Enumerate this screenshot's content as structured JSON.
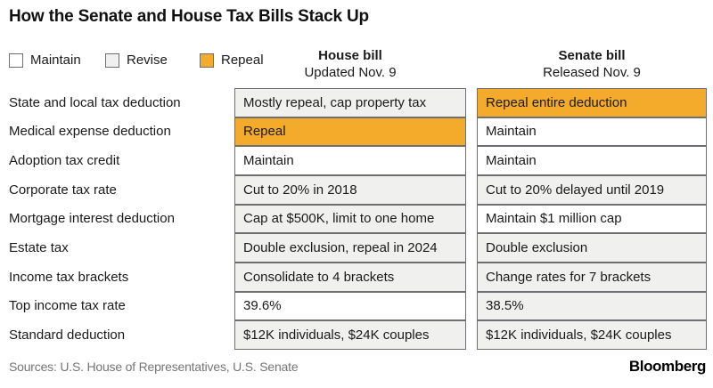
{
  "title": "How the Senate and House Tax Bills Stack Up",
  "legend": {
    "maintain": {
      "label": "Maintain"
    },
    "revise": {
      "label": "Revise"
    },
    "repeal": {
      "label": "Repeal"
    }
  },
  "columns": {
    "house": {
      "title": "House bill",
      "subtitle": "Updated Nov. 9"
    },
    "senate": {
      "title": "Senate bill",
      "subtitle": "Released Nov. 9"
    }
  },
  "colors": {
    "maintain": "#ffffff",
    "revise": "#f0f0ee",
    "repeal": "#f4ab2c",
    "border": "#6e6f72"
  },
  "footer": {
    "sources": "Sources: U.S. House of Representatives, U.S. Senate",
    "brand": "Bloomberg"
  },
  "chart_data": {
    "type": "table",
    "title": "How the Senate and House Tax Bills Stack Up",
    "legend": [
      "Maintain",
      "Revise",
      "Repeal"
    ],
    "columns": [
      "House bill (Updated Nov. 9)",
      "Senate bill (Released Nov. 9)"
    ],
    "rows": [
      {
        "category": "State and local tax deduction",
        "house": "Mostly repeal, cap property tax",
        "house_status": "revise",
        "senate": "Repeal entire deduction",
        "senate_status": "repeal"
      },
      {
        "category": "Medical expense deduction",
        "house": "Repeal",
        "house_status": "repeal",
        "senate": "Maintain",
        "senate_status": "maintain"
      },
      {
        "category": "Adoption tax credit",
        "house": "Maintain",
        "house_status": "maintain",
        "senate": "Maintain",
        "senate_status": "maintain"
      },
      {
        "category": "Corporate tax rate",
        "house": "Cut to 20% in 2018",
        "house_status": "revise",
        "senate": "Cut to 20% delayed until 2019",
        "senate_status": "revise"
      },
      {
        "category": "Mortgage interest deduction",
        "house": "Cap at $500K, limit to one home",
        "house_status": "revise",
        "senate": "Maintain $1 million cap",
        "senate_status": "maintain"
      },
      {
        "category": "Estate tax",
        "house": "Double exclusion, repeal in 2024",
        "house_status": "revise",
        "senate": "Double exclusion",
        "senate_status": "revise"
      },
      {
        "category": "Income tax brackets",
        "house": "Consolidate to 4 brackets",
        "house_status": "revise",
        "senate": "Change rates for 7 brackets",
        "senate_status": "revise"
      },
      {
        "category": "Top income tax rate",
        "house": "39.6%",
        "house_status": "maintain",
        "senate": "38.5%",
        "senate_status": "revise"
      },
      {
        "category": "Standard deduction",
        "house": "$12K individuals, $24K couples",
        "house_status": "revise",
        "senate": "$12K individuals, $24K couples",
        "senate_status": "revise"
      }
    ]
  }
}
